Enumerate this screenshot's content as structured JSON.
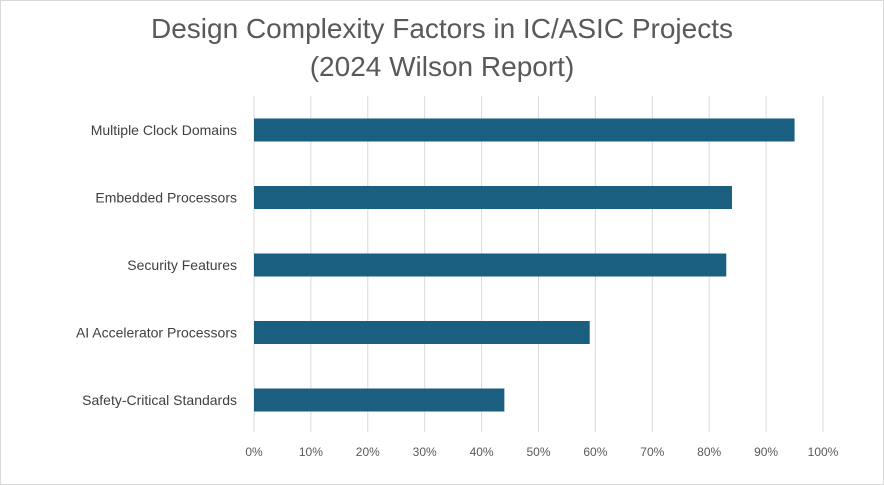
{
  "chart_data": {
    "type": "bar",
    "orientation": "horizontal",
    "title_lines": [
      "Design Complexity Factors in IC/ASIC Projects",
      "(2024 Wilson Report)"
    ],
    "categories": [
      "Multiple Clock Domains",
      "Embedded Processors",
      "Security Features",
      "AI Accelerator Processors",
      "Safety-Critical Standards"
    ],
    "values": [
      95,
      84,
      83,
      59,
      44
    ],
    "xlim": [
      0,
      100
    ],
    "xticks": [
      "0%",
      "10%",
      "20%",
      "30%",
      "40%",
      "50%",
      "60%",
      "70%",
      "80%",
      "90%",
      "100%"
    ],
    "xtick_values": [
      0,
      10,
      20,
      30,
      40,
      50,
      60,
      70,
      80,
      90,
      100
    ],
    "grid": "vertical",
    "legend": "none",
    "bar_color": "#1a5e80",
    "grid_color": "#d9d9d9"
  }
}
